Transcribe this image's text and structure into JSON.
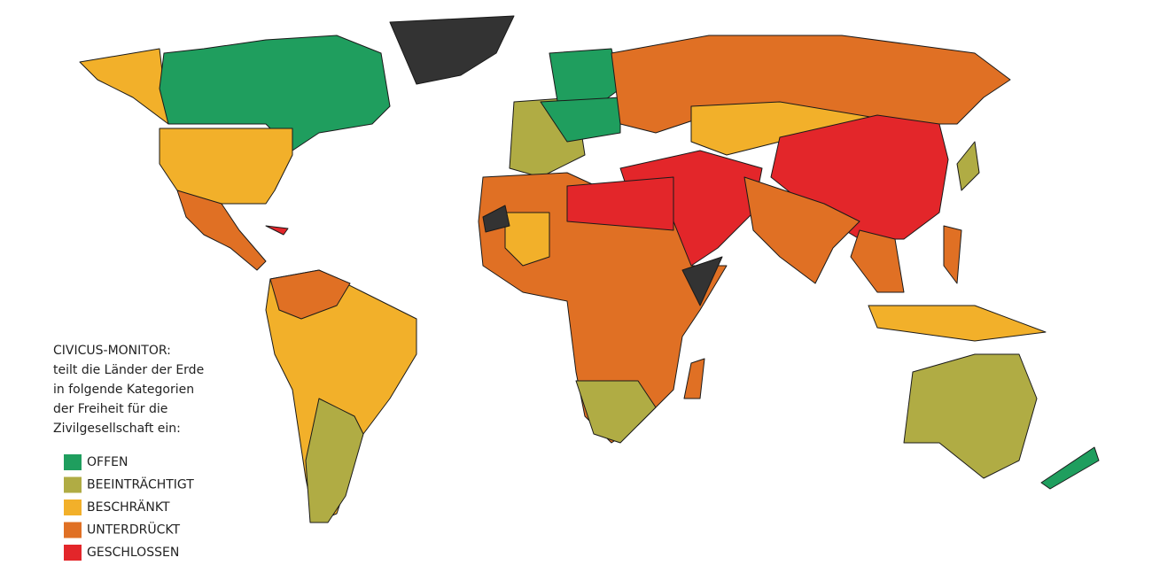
{
  "legend": {
    "title": "CIVICUS-MONITOR:",
    "description": [
      "teilt die Länder der Erde",
      "in folgende Kategorien",
      "der Freiheit für die",
      "Zivilgesellschaft ein:"
    ],
    "items": [
      {
        "label": "OFFEN",
        "color": "#1f9e5e"
      },
      {
        "label": "BEEINTRÄCHTIGT",
        "color": "#b0ac44"
      },
      {
        "label": "BESCHRÄNKT",
        "color": "#f2b02a"
      },
      {
        "label": "UNTERDRÜCKT",
        "color": "#e07024"
      },
      {
        "label": "GESCHLOSSEN",
        "color": "#e3262a"
      }
    ]
  }
}
